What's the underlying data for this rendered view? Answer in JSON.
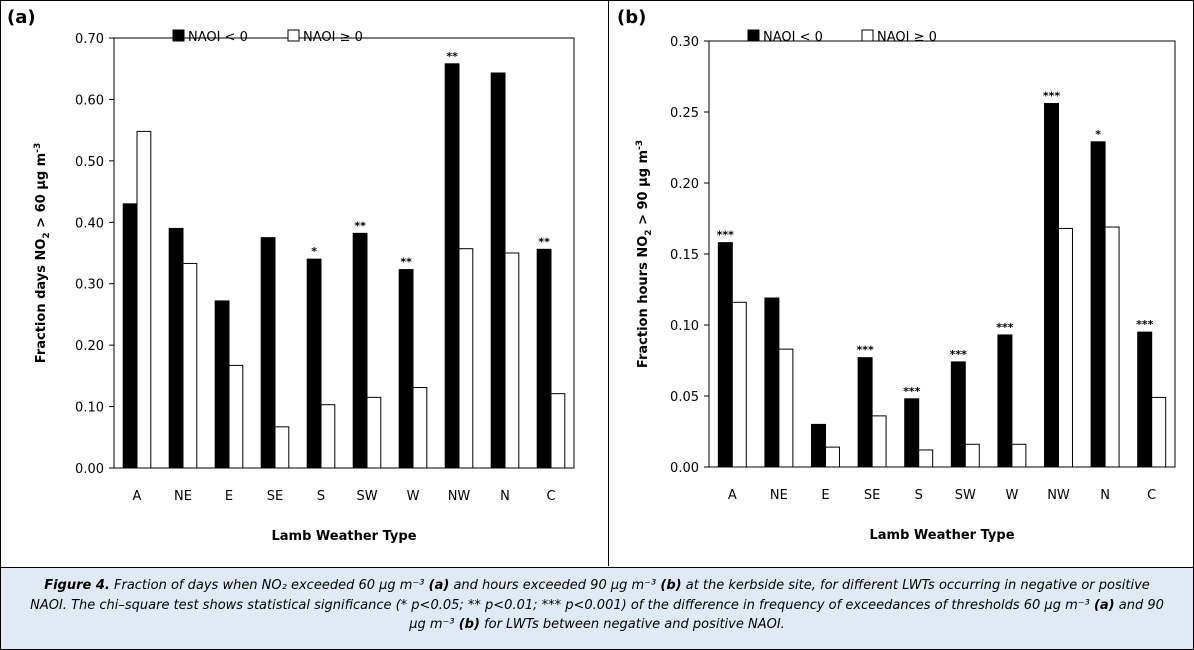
{
  "chart_data": [
    {
      "type": "bar",
      "panel_label": "(a)",
      "title": "",
      "xlabel": "Lamb Weather Type",
      "ylabel_parts": [
        "Fraction days NO",
        "2",
        " > 60 µg m",
        "-3"
      ],
      "ylim": [
        0,
        0.7
      ],
      "ytick_step": 0.1,
      "ytick_labels": [
        "0.00",
        "0.10",
        "0.20",
        "0.30",
        "0.40",
        "0.50",
        "0.60",
        "0.70"
      ],
      "legend_placement": "top-left",
      "categories": [
        "A",
        "NE",
        "E",
        "SE",
        "S",
        "SW",
        "W",
        "NW",
        "N",
        "C"
      ],
      "series": [
        {
          "name": "NAOI < 0",
          "color": "#000000",
          "values": [
            0.43,
            0.39,
            0.272,
            0.375,
            0.34,
            0.382,
            0.323,
            0.658,
            0.643,
            0.356
          ]
        },
        {
          "name": "NAOI ≥ 0",
          "color": "#ffffff",
          "values": [
            0.548,
            0.333,
            0.167,
            0.067,
            0.103,
            0.115,
            0.131,
            0.357,
            0.35,
            0.121
          ]
        }
      ],
      "significance": [
        "",
        "",
        "",
        "",
        "*",
        "**",
        "**",
        "**",
        "",
        "**"
      ]
    },
    {
      "type": "bar",
      "panel_label": "(b)",
      "title": "",
      "xlabel": "Lamb Weather Type",
      "ylabel_parts": [
        "Fraction hours NO",
        "2",
        " > 90 µg m",
        "-3"
      ],
      "ylim": [
        0,
        0.3
      ],
      "ytick_step": 0.05,
      "ytick_labels": [
        "0.00",
        "0.05",
        "0.10",
        "0.15",
        "0.20",
        "0.25",
        "0.30"
      ],
      "legend_placement": "top-left",
      "categories": [
        "A",
        "NE",
        "E",
        "SE",
        "S",
        "SW",
        "W",
        "NW",
        "N",
        "C"
      ],
      "series": [
        {
          "name": "NAOI < 0",
          "color": "#000000",
          "values": [
            0.158,
            0.119,
            0.03,
            0.077,
            0.048,
            0.074,
            0.093,
            0.256,
            0.229,
            0.095
          ]
        },
        {
          "name": "NAOI ≥ 0",
          "color": "#ffffff",
          "values": [
            0.116,
            0.083,
            0.014,
            0.036,
            0.012,
            0.016,
            0.016,
            0.168,
            0.169,
            0.049
          ]
        }
      ],
      "significance": [
        "***",
        "",
        "",
        "***",
        "***",
        "***",
        "***",
        "***",
        "*",
        "***"
      ]
    }
  ],
  "caption": {
    "figure_label": "Figure 4.",
    "text_parts": [
      " Fraction of days when NO₂ exceeded 60 µg m⁻³ ",
      "(a)",
      " and hours exceeded 90 µg m⁻³ ",
      "(b)",
      " at the kerbside site, for different LWTs occurring in negative or positive NAOI. The chi–square test shows statistical significance (* p<0.05; ** p<0.01; *** p<0.001) of the difference in frequency of exceedances of thresholds 60 µg m⁻³ ",
      "(a)",
      " and 90 µg m⁻³ ",
      "(b)",
      " for LWTs between negative and positive NAOI."
    ]
  }
}
